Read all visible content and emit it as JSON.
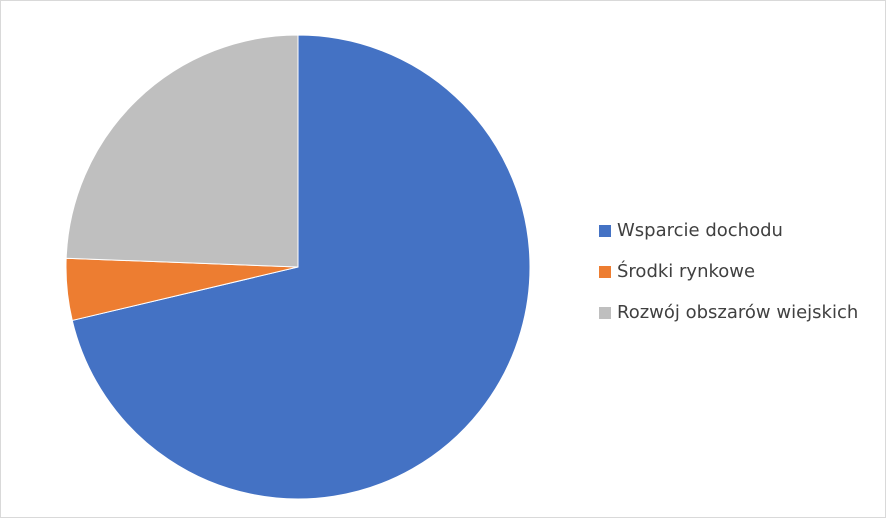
{
  "chart_data": {
    "type": "pie",
    "title": "",
    "categories": [
      "Wsparcie dochodu",
      "Środki rynkowe",
      "Rozwój obszarów wiejskich"
    ],
    "values": [
      71.3,
      4.3,
      24.4
    ],
    "colors": [
      "#4472c4",
      "#ed7d31",
      "#bfbfbf"
    ],
    "start_angle_deg": 0,
    "direction": "clockwise",
    "legend_position": "right"
  },
  "legend": {
    "items": [
      {
        "label": "Wsparcie dochodu",
        "color": "#4472c4"
      },
      {
        "label": "Środki rynkowe",
        "color": "#ed7d31"
      },
      {
        "label": "Rozwój obszarów wiejskich",
        "color": "#bfbfbf"
      }
    ]
  }
}
